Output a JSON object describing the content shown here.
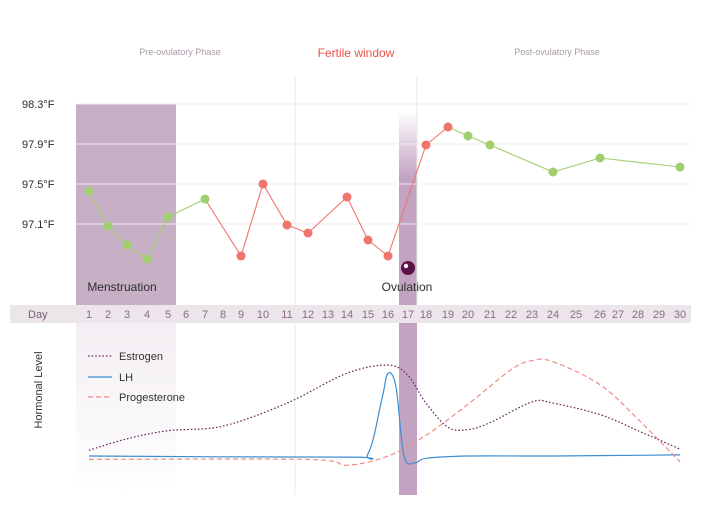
{
  "chart_data": [
    {
      "type": "line",
      "phases": {
        "pre": "Pre-ovulatory Phase",
        "fertile": "Fertile window",
        "post": "Post-ovulatory Phase"
      },
      "yticks": [
        "98.3°F",
        "97.9°F",
        "97.5°F",
        "97.1°F"
      ],
      "ytick_values": [
        98.3,
        97.9,
        97.5,
        97.1
      ],
      "ylim": [
        96.7,
        98.4
      ],
      "day_label": "Day",
      "days": [
        1,
        2,
        3,
        4,
        5,
        6,
        7,
        8,
        9,
        10,
        11,
        12,
        13,
        14,
        15,
        16,
        17,
        18,
        19,
        20,
        21,
        22,
        23,
        24,
        25,
        26,
        27,
        28,
        29,
        30
      ],
      "temperatures": [
        {
          "day": 1,
          "temp": 97.43,
          "status": "infertile"
        },
        {
          "day": 2,
          "temp": 97.08,
          "status": "infertile"
        },
        {
          "day": 3,
          "temp": 96.89,
          "status": "infertile"
        },
        {
          "day": 4,
          "temp": 96.75,
          "status": "infertile"
        },
        {
          "day": 5,
          "temp": 97.17,
          "status": "infertile"
        },
        {
          "day": 7,
          "temp": 97.35,
          "status": "infertile"
        },
        {
          "day": 9,
          "temp": 96.78,
          "status": "fertile"
        },
        {
          "day": 10,
          "temp": 97.5,
          "status": "fertile"
        },
        {
          "day": 11,
          "temp": 97.09,
          "status": "fertile"
        },
        {
          "day": 12,
          "temp": 97.01,
          "status": "fertile"
        },
        {
          "day": 14,
          "temp": 97.37,
          "status": "fertile"
        },
        {
          "day": 15,
          "temp": 96.94,
          "status": "fertile"
        },
        {
          "day": 16,
          "temp": 96.78,
          "status": "fertile"
        },
        {
          "day": 18,
          "temp": 97.89,
          "status": "fertile"
        },
        {
          "day": 19,
          "temp": 98.07,
          "status": "fertile"
        },
        {
          "day": 20,
          "temp": 97.98,
          "status": "infertile"
        },
        {
          "day": 21,
          "temp": 97.89,
          "status": "infertile"
        },
        {
          "day": 24,
          "temp": 97.62,
          "status": "infertile"
        },
        {
          "day": 26,
          "temp": 97.76,
          "status": "infertile"
        },
        {
          "day": 30,
          "temp": 97.67,
          "status": "infertile"
        }
      ],
      "menstruation": {
        "label": "Menstruation",
        "days": [
          1,
          5
        ]
      },
      "ovulation": {
        "label": "Ovulation",
        "day": 17
      },
      "colors": {
        "fertile": "#f0756c",
        "infertile": "#9fcf6e",
        "menstruation": "#c7b0c5",
        "ovulation_band": "#c3a3c2",
        "ovulation_icon": "#5a1346",
        "dayrow": "#ece6ea"
      }
    },
    {
      "type": "line",
      "ylabel": "Hormonal Level",
      "series": [
        {
          "name": "Estrogen",
          "style": "dotted",
          "color": "#6a2358",
          "values": [
            [
              1,
              0.05
            ],
            [
              3,
              0.15
            ],
            [
              5,
              0.22
            ],
            [
              8,
              0.26
            ],
            [
              11,
              0.46
            ],
            [
              14,
              0.72
            ],
            [
              16,
              0.79
            ],
            [
              17,
              0.7
            ],
            [
              18,
              0.46
            ],
            [
              19,
              0.25
            ],
            [
              20,
              0.23
            ],
            [
              21,
              0.29
            ],
            [
              23,
              0.47
            ],
            [
              24,
              0.46
            ],
            [
              26,
              0.36
            ],
            [
              28,
              0.22
            ],
            [
              30,
              0.06
            ]
          ]
        },
        {
          "name": "LH",
          "style": "solid",
          "color": "#3d8fd1",
          "values": [
            [
              1,
              0.0
            ],
            [
              14,
              -0.01
            ],
            [
              15,
              0.02
            ],
            [
              15.7,
              0.5
            ],
            [
              16,
              0.72
            ],
            [
              16.4,
              0.6
            ],
            [
              16.8,
              0.0
            ],
            [
              17.4,
              -0.06
            ],
            [
              18,
              -0.02
            ],
            [
              20,
              0.0
            ],
            [
              24,
              0.0
            ],
            [
              30,
              0.01
            ]
          ]
        },
        {
          "name": "Progesterone",
          "style": "dashed",
          "color": "#f08c84",
          "values": [
            [
              1,
              -0.03
            ],
            [
              12,
              -0.03
            ],
            [
              14,
              -0.08
            ],
            [
              16,
              0.0
            ],
            [
              18,
              0.18
            ],
            [
              20,
              0.45
            ],
            [
              22,
              0.75
            ],
            [
              23,
              0.83
            ],
            [
              24,
              0.82
            ],
            [
              26,
              0.62
            ],
            [
              28,
              0.32
            ],
            [
              30,
              -0.05
            ]
          ]
        }
      ],
      "legend_position": "top-left"
    }
  ]
}
